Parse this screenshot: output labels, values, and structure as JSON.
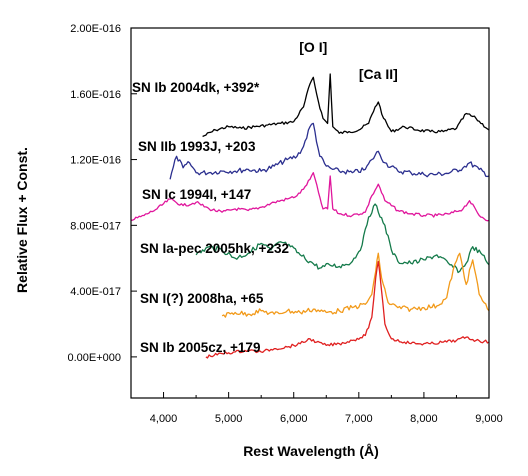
{
  "chart_data": {
    "type": "line",
    "title": "",
    "xlabel": "Rest Wavelength (Å)",
    "ylabel": "Relative Flux + Const.",
    "xlim": [
      3500,
      9000
    ],
    "ylim": [
      -2.5e-17,
      2e-16
    ],
    "x_ticks": [
      4000,
      5000,
      6000,
      7000,
      8000,
      9000
    ],
    "x_tick_labels": [
      "4,000",
      "5,000",
      "6,000",
      "7,000",
      "8,000",
      "9,000"
    ],
    "y_ticks": [
      0,
      4e-17,
      8e-17,
      1.2e-16,
      1.6e-16,
      2e-16
    ],
    "y_tick_labels": [
      "0.00E+000",
      "4.00E-017",
      "8.00E-017",
      "1.20E-016",
      "1.60E-016",
      "2.00E-016"
    ],
    "grid": false,
    "line_annotations": [
      {
        "text": "[O I]",
        "x": 6300
      },
      {
        "text": "[Ca II]",
        "x": 7300
      }
    ],
    "series": [
      {
        "name": "SN Ib 2004dk, +392*",
        "color": "#000000",
        "x": [
          4600,
          4800,
          5000,
          5200,
          5400,
          5600,
          5800,
          6000,
          6150,
          6250,
          6300,
          6380,
          6450,
          6520,
          6560,
          6600,
          6700,
          6850,
          7000,
          7150,
          7250,
          7300,
          7380,
          7500,
          7700,
          7900,
          8100,
          8300,
          8500,
          8650,
          8800,
          9000
        ],
        "y": [
          1.34e-16,
          1.38e-16,
          1.4e-16,
          1.39e-16,
          1.4e-16,
          1.41e-16,
          1.42e-16,
          1.43e-16,
          1.52e-16,
          1.66e-16,
          1.7e-16,
          1.55e-16,
          1.45e-16,
          1.42e-16,
          1.72e-16,
          1.4e-16,
          1.36e-16,
          1.37e-16,
          1.38e-16,
          1.42e-16,
          1.52e-16,
          1.55e-16,
          1.45e-16,
          1.37e-16,
          1.4e-16,
          1.38e-16,
          1.37e-16,
          1.37e-16,
          1.39e-16,
          1.48e-16,
          1.45e-16,
          1.38e-16
        ]
      },
      {
        "name": "SN IIb 1993J, +203",
        "color": "#2b2f8f",
        "x": [
          4100,
          4200,
          4300,
          4400,
          4500,
          4700,
          4900,
          5100,
          5300,
          5500,
          5700,
          5900,
          6050,
          6150,
          6250,
          6300,
          6400,
          6500,
          6600,
          6700,
          6900,
          7100,
          7200,
          7300,
          7400,
          7600,
          7800,
          8000,
          8200,
          8400,
          8600,
          8700,
          8850,
          9000
        ],
        "y": [
          1.08e-16,
          1.22e-16,
          1.15e-16,
          1.18e-16,
          1.12e-16,
          1.12e-16,
          1.13e-16,
          1.13e-16,
          1.14e-16,
          1.13e-16,
          1.16e-16,
          1.2e-16,
          1.22e-16,
          1.28e-16,
          1.4e-16,
          1.42e-16,
          1.22e-16,
          1.16e-16,
          1.14e-16,
          1.13e-16,
          1.12e-16,
          1.14e-16,
          1.2e-16,
          1.25e-16,
          1.18e-16,
          1.13e-16,
          1.12e-16,
          1.11e-16,
          1.11e-16,
          1.12e-16,
          1.15e-16,
          1.18e-16,
          1.14e-16,
          1.1e-16
        ]
      },
      {
        "name": "SN Ic 1994I, +147",
        "color": "#e0169c",
        "x": [
          3500,
          3700,
          3900,
          4100,
          4300,
          4500,
          4700,
          4900,
          5100,
          5300,
          5500,
          5700,
          5900,
          6050,
          6150,
          6250,
          6300,
          6380,
          6450,
          6520,
          6560,
          6600,
          6700,
          6900,
          7100,
          7200,
          7300,
          7400,
          7600,
          7800,
          8000,
          8200,
          8400,
          8600,
          8700,
          8850,
          9000
        ],
        "y": [
          8.3e-17,
          8.6e-17,
          9e-17,
          9.6e-17,
          9.2e-17,
          9.4e-17,
          9e-17,
          8.8e-17,
          9e-17,
          8.9e-17,
          9.1e-17,
          9.4e-17,
          9.6e-17,
          9.8e-17,
          1.02e-16,
          1.08e-16,
          1.12e-16,
          1e-16,
          9e-17,
          9e-17,
          1.1e-16,
          9e-17,
          8.7e-17,
          8.6e-17,
          8.8e-17,
          9.8e-17,
          1.05e-16,
          9.5e-17,
          8.9e-17,
          8.7e-17,
          8.6e-17,
          8.6e-17,
          8.7e-17,
          9e-17,
          9.5e-17,
          8.6e-17,
          8.3e-17
        ]
      },
      {
        "name": "SN Ia-pec 2005hk, +232",
        "color": "#147a4a",
        "x": [
          4500,
          4700,
          4900,
          5100,
          5300,
          5500,
          5650,
          5800,
          5950,
          6100,
          6250,
          6400,
          6550,
          6700,
          6900,
          7050,
          7150,
          7250,
          7300,
          7400,
          7500,
          7600,
          7800,
          8000,
          8200,
          8400,
          8550,
          8650,
          8750,
          8900,
          9000
        ],
        "y": [
          6.2e-17,
          6.7e-17,
          6.5e-17,
          6e-17,
          6.3e-17,
          6.9e-17,
          6.5e-17,
          7e-17,
          6.7e-17,
          6.2e-17,
          5.8e-17,
          5.4e-17,
          5.6e-17,
          5.5e-17,
          5.8e-17,
          6.8e-17,
          8.5e-17,
          9.3e-17,
          8.8e-17,
          8e-17,
          6.5e-17,
          5.8e-17,
          5.7e-17,
          5.9e-17,
          6.2e-17,
          5.6e-17,
          5.2e-17,
          5.7e-17,
          6.7e-17,
          6.2e-17,
          5.6e-17
        ]
      },
      {
        "name": "SN I(?) 2008ha, +65",
        "color": "#f29a1a",
        "x": [
          4900,
          5100,
          5300,
          5500,
          5700,
          5900,
          6100,
          6300,
          6500,
          6700,
          6900,
          7100,
          7200,
          7260,
          7300,
          7350,
          7450,
          7600,
          7800,
          8000,
          8200,
          8350,
          8450,
          8550,
          8650,
          8750,
          8850,
          9000
        ],
        "y": [
          2.5e-17,
          2.7e-17,
          2.6e-17,
          2.8e-17,
          2.6e-17,
          2.8e-17,
          2.7e-17,
          2.9e-17,
          2.7e-17,
          2.8e-17,
          3e-17,
          3.2e-17,
          3.8e-17,
          5.2e-17,
          6.3e-17,
          4.8e-17,
          3.3e-17,
          3e-17,
          2.9e-17,
          3e-17,
          3.1e-17,
          3.6e-17,
          5.3e-17,
          6.3e-17,
          4.4e-17,
          5.9e-17,
          3.8e-17,
          2.8e-17
        ]
      },
      {
        "name": "SN Ib 2005cz, +179",
        "color": "#e02020",
        "x": [
          4650,
          4900,
          5100,
          5300,
          5500,
          5700,
          5900,
          6100,
          6250,
          6350,
          6500,
          6700,
          6900,
          7100,
          7200,
          7260,
          7300,
          7340,
          7400,
          7500,
          7700,
          7900,
          8100,
          8300,
          8500,
          8650,
          8800,
          9000
        ],
        "y": [
          0.0,
          2e-18,
          3e-18,
          4e-18,
          3e-18,
          5e-18,
          6e-18,
          8e-18,
          1.1e-17,
          9e-18,
          7e-18,
          8e-18,
          1e-17,
          1.3e-17,
          2.4e-17,
          4.8e-17,
          5.8e-17,
          4.4e-17,
          2e-17,
          1.1e-17,
          9e-18,
          8e-18,
          8e-18,
          9e-18,
          1e-17,
          1.2e-17,
          1e-17,
          9e-18
        ]
      }
    ]
  }
}
